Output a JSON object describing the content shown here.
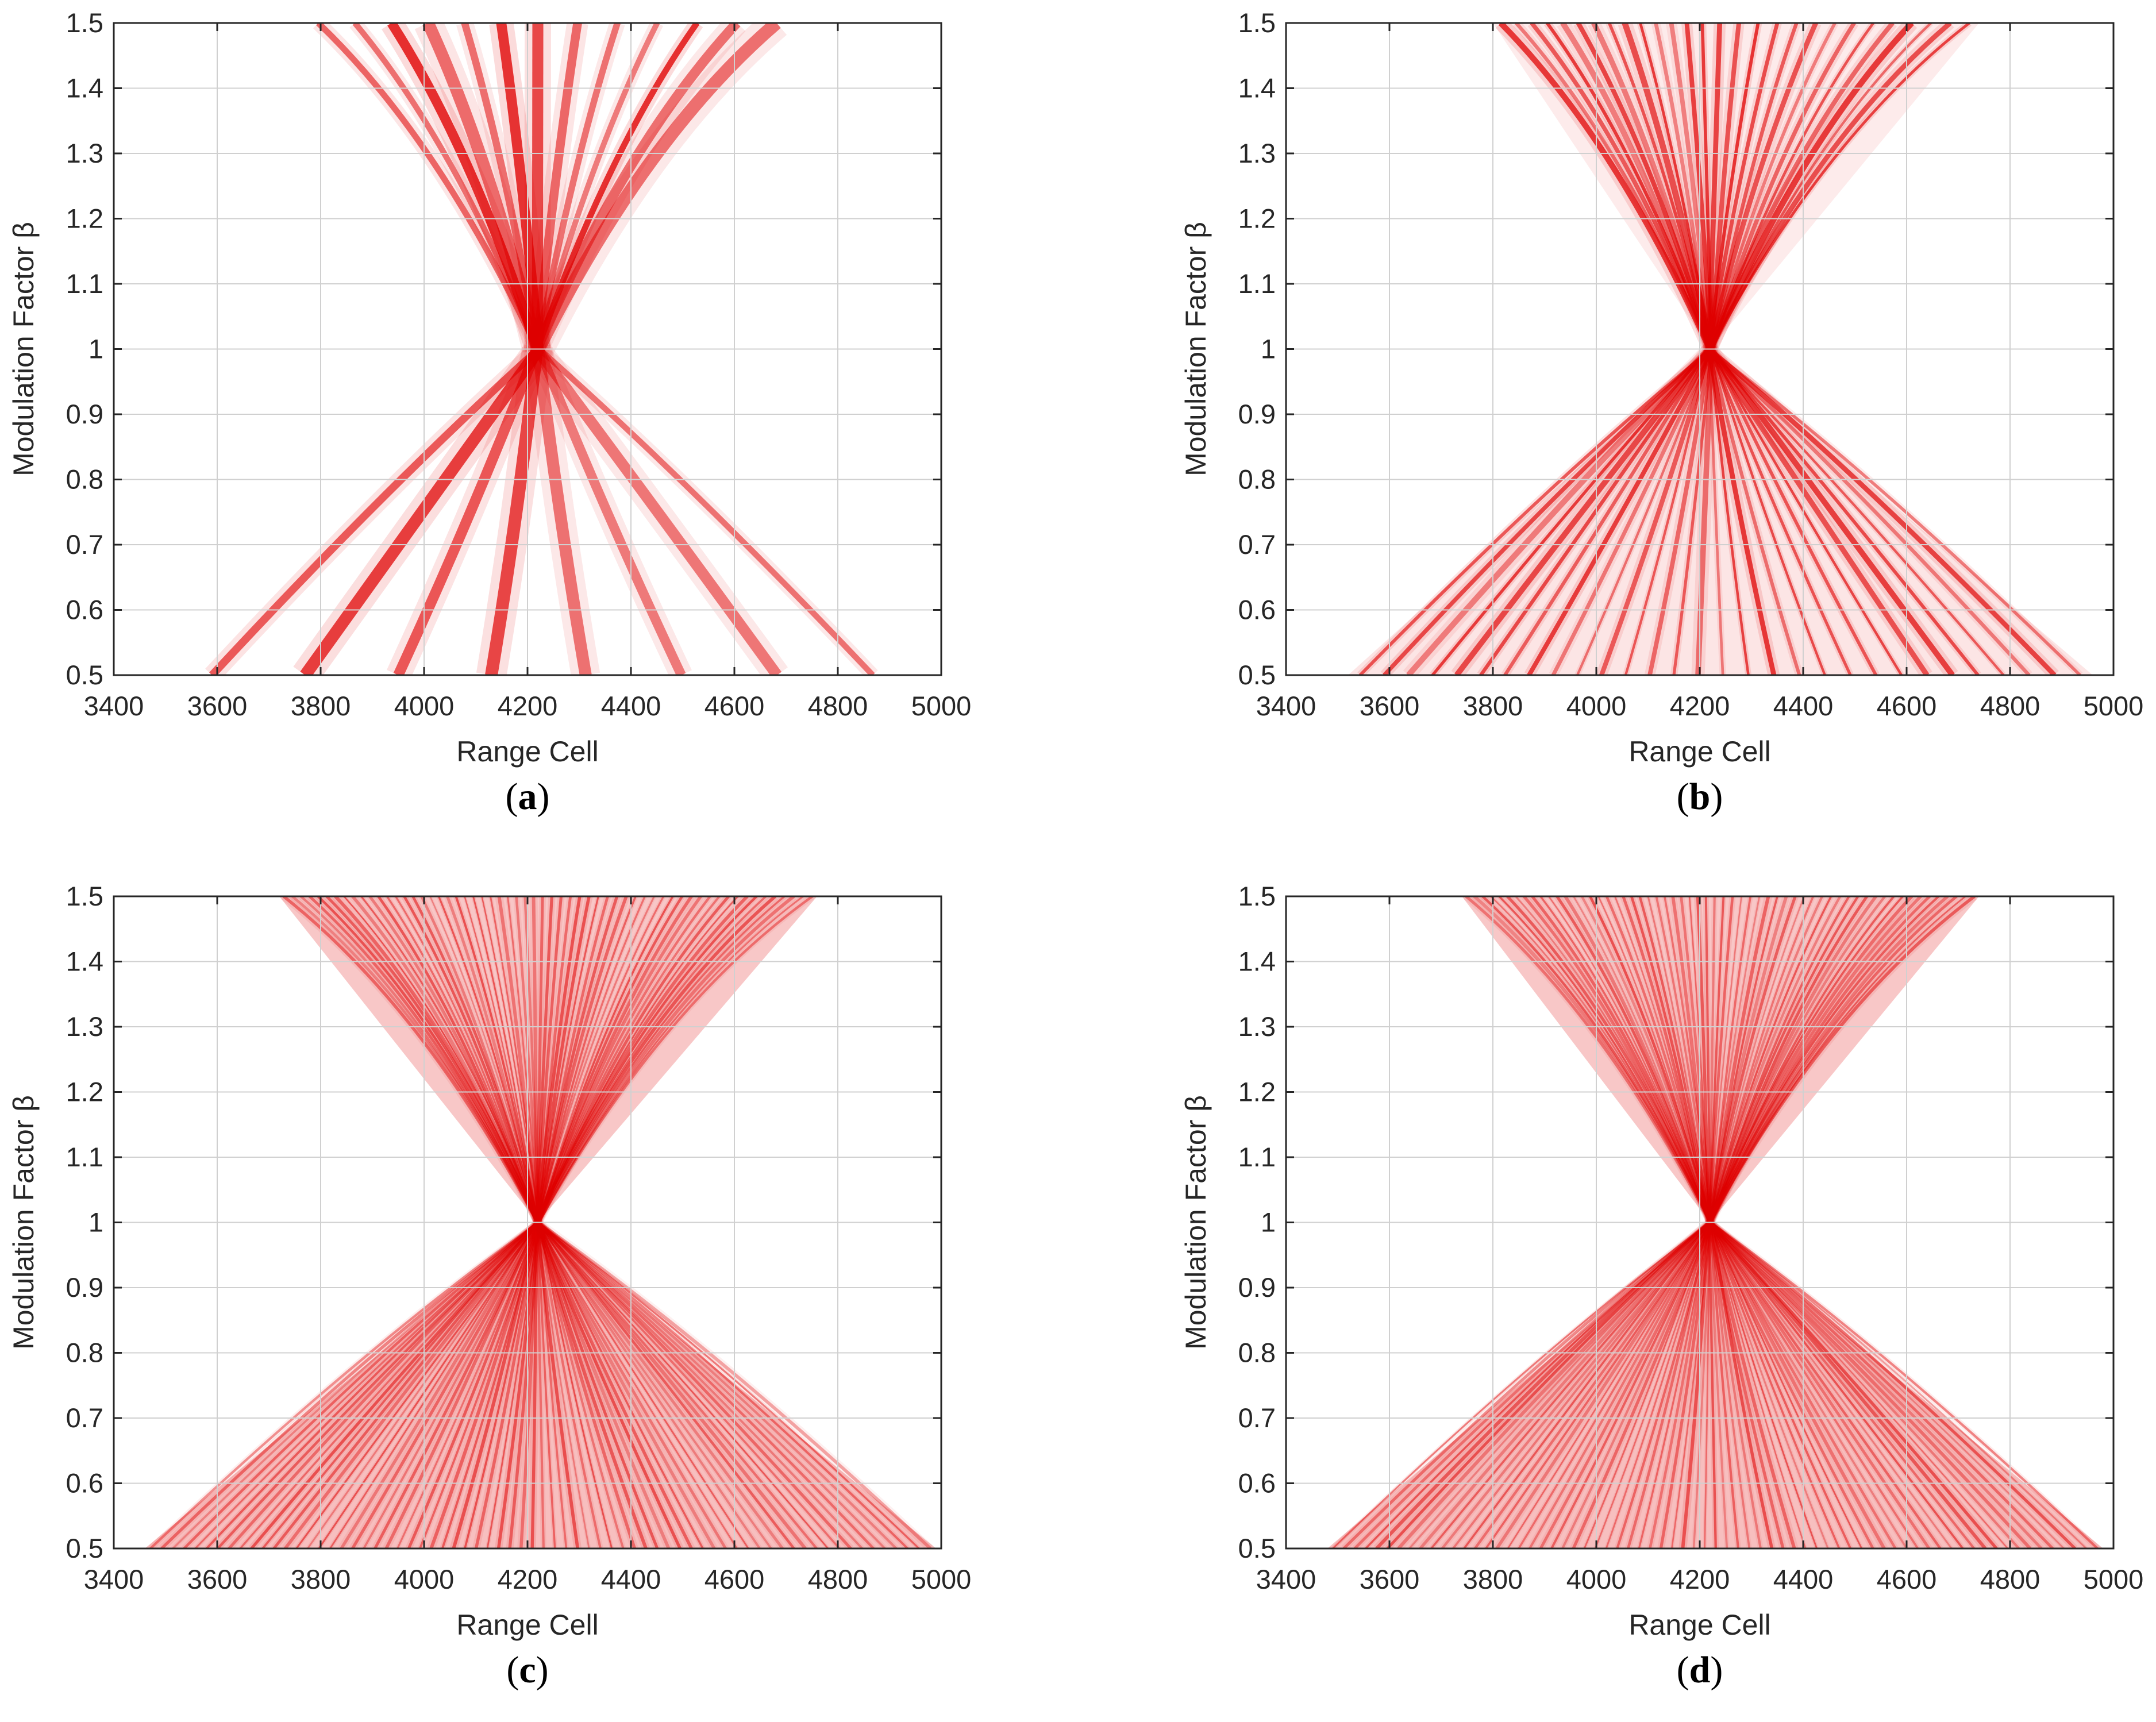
{
  "figure": {
    "panels": [
      {
        "label": "a",
        "variant": 0
      },
      {
        "label": "b",
        "variant": 1
      },
      {
        "label": "c",
        "variant": 2
      },
      {
        "label": "d",
        "variant": 3
      }
    ]
  },
  "colors": {
    "intensity_high": "#e00000",
    "background": "#ffffff",
    "grid": "#d0d0d0",
    "axis": "#262626"
  },
  "chart_data": [
    {
      "panel": "a",
      "type": "heatmap",
      "title": "",
      "xlabel": "Range Cell",
      "ylabel": "Modulation Factor β",
      "xlim": [
        3400,
        5000
      ],
      "ylim": [
        0.5,
        1.5
      ],
      "xticks": [
        3400,
        3600,
        3800,
        4000,
        4200,
        4400,
        4600,
        4800,
        5000
      ],
      "yticks": [
        0.5,
        0.6,
        0.7,
        0.8,
        0.9,
        1,
        1.1,
        1.2,
        1.3,
        1.4,
        1.5
      ],
      "grid": true,
      "colormap": "white-to-red",
      "center_range_cell": 4220,
      "focus_beta": 1.0,
      "upper_extent": {
        "beta": 1.5,
        "x_min": 3760,
        "x_max": 4720
      },
      "lower_extent": {
        "beta": 0.5,
        "x_min": 3500,
        "x_max": 4960
      }
    },
    {
      "panel": "b",
      "type": "heatmap",
      "title": "",
      "xlabel": "Range Cell",
      "ylabel": "Modulation Factor β",
      "xlim": [
        3400,
        5000
      ],
      "ylim": [
        0.5,
        1.5
      ],
      "xticks": [
        3400,
        3600,
        3800,
        4000,
        4200,
        4400,
        4600,
        4800,
        5000
      ],
      "yticks": [
        0.5,
        0.6,
        0.7,
        0.8,
        0.9,
        1,
        1.1,
        1.2,
        1.3,
        1.4,
        1.5
      ],
      "grid": true,
      "colormap": "white-to-red",
      "center_range_cell": 4220,
      "focus_beta": 1.0,
      "upper_extent": {
        "beta": 1.5,
        "x_min": 3800,
        "x_max": 4740
      },
      "lower_extent": {
        "beta": 0.5,
        "x_min": 3520,
        "x_max": 4960
      }
    },
    {
      "panel": "c",
      "type": "heatmap",
      "title": "",
      "xlabel": "Range Cell",
      "ylabel": "Modulation Factor β",
      "xlim": [
        3400,
        5000
      ],
      "ylim": [
        0.5,
        1.5
      ],
      "xticks": [
        3400,
        3600,
        3800,
        4000,
        4200,
        4400,
        4600,
        4800,
        5000
      ],
      "yticks": [
        0.5,
        0.6,
        0.7,
        0.8,
        0.9,
        1,
        1.1,
        1.2,
        1.3,
        1.4,
        1.5
      ],
      "grid": true,
      "colormap": "white-to-red",
      "center_range_cell": 4220,
      "focus_beta": 1.0,
      "upper_extent": {
        "beta": 1.5,
        "x_min": 3720,
        "x_max": 4760
      },
      "lower_extent": {
        "beta": 0.5,
        "x_min": 3460,
        "x_max": 4990
      }
    },
    {
      "panel": "d",
      "type": "heatmap",
      "title": "",
      "xlabel": "Range Cell",
      "ylabel": "Modulation Factor β",
      "xlim": [
        3400,
        5000
      ],
      "ylim": [
        0.5,
        1.5
      ],
      "xticks": [
        3400,
        3600,
        3800,
        4000,
        4200,
        4400,
        4600,
        4800,
        5000
      ],
      "yticks": [
        0.5,
        0.6,
        0.7,
        0.8,
        0.9,
        1,
        1.1,
        1.2,
        1.3,
        1.4,
        1.5
      ],
      "grid": true,
      "colormap": "white-to-red",
      "center_range_cell": 4220,
      "focus_beta": 1.0,
      "upper_extent": {
        "beta": 1.5,
        "x_min": 3740,
        "x_max": 4740
      },
      "lower_extent": {
        "beta": 0.5,
        "x_min": 3480,
        "x_max": 4980
      }
    }
  ]
}
